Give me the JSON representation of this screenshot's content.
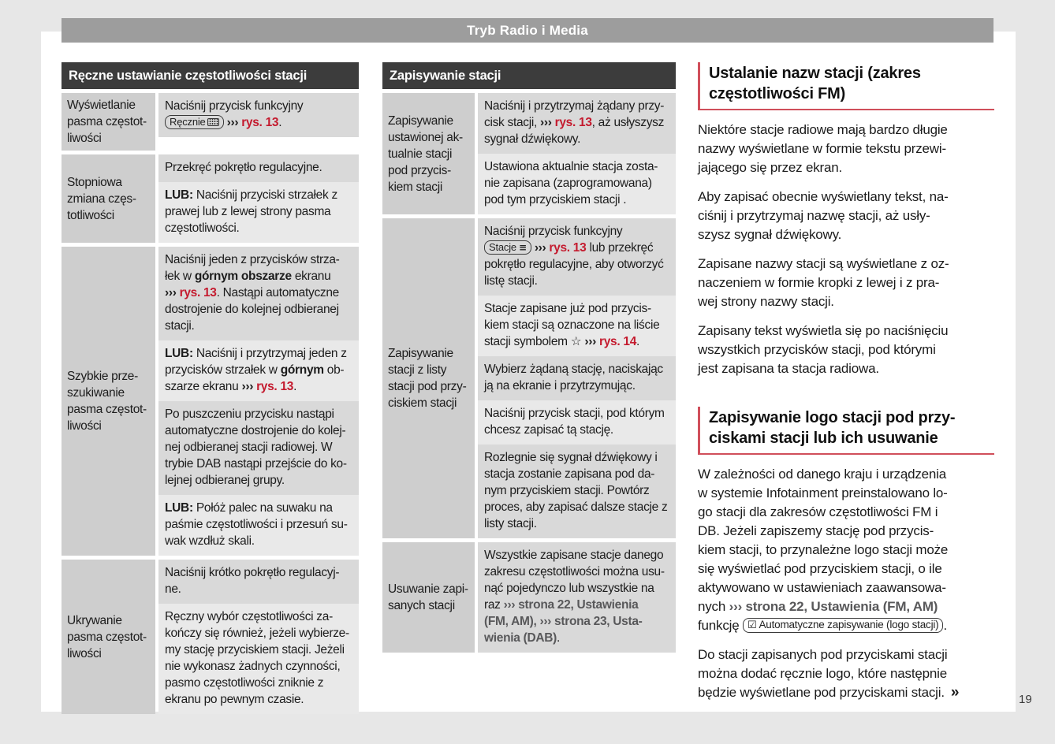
{
  "page": {
    "header_title": "Tryb Radio i Media",
    "page_number": "19"
  },
  "colors": {
    "accent_red_text": "#c41a2e",
    "heading_rule_red": "#d04f5b",
    "header_bar_gray": "#9d9d9d",
    "table_header_gray": "#3c3c3c",
    "cell_dark": "#d9d9d9",
    "cell_light": "#e9e9e9",
    "label_cell_gray": "#cecece",
    "link_gray": "#58585a"
  },
  "tables": [
    {
      "title": "Ręczne ustawianie częstotliwości stacji",
      "rows": [
        {
          "label": "Wyświetlanie\npasma częstot-\nliwości",
          "cells": [
            [
              {
                "t": "Naciśnij przycisk funkcyjny\n",
                "s": "p"
              },
              {
                "t": "Ręcznie",
                "s": "btn",
                "icon": "keyboard"
              },
              {
                "t": " ",
                "s": "p"
              },
              {
                "t": "››› ",
                "s": "b"
              },
              {
                "t": "rys. 13",
                "s": "r"
              },
              {
                "t": ".",
                "s": "p"
              }
            ]
          ]
        },
        {
          "label": "Stopniowa\nzmiana częs-\ntotliwości",
          "cells": [
            [
              {
                "t": "Przekręć pokrętło regulacyjne.",
                "s": "p"
              }
            ],
            [
              {
                "t": "LUB:",
                "s": "b"
              },
              {
                "t": " Naciśnij przyciski strzałek z\nprawej lub z lewej strony pasma\nczęstotliwości.",
                "s": "p"
              }
            ]
          ]
        },
        {
          "label": "Szybkie prze-\nszukiwanie\npasma częstot-\nliwości",
          "cells": [
            [
              {
                "t": "Naciśnij jeden z przycisków strza-\nłek w ",
                "s": "p"
              },
              {
                "t": "górnym obszarze",
                "s": "b"
              },
              {
                "t": " ekranu\n",
                "s": "p"
              },
              {
                "t": "››› ",
                "s": "b"
              },
              {
                "t": "rys. 13",
                "s": "r"
              },
              {
                "t": ". Nastąpi automatyczne\ndostrojenie do kolejnej odbieranej\nstacji.",
                "s": "p"
              }
            ],
            [
              {
                "t": "LUB:",
                "s": "b"
              },
              {
                "t": " Naciśnij i przytrzymaj jeden z\nprzycisków strzałek w ",
                "s": "p"
              },
              {
                "t": "górnym",
                "s": "b"
              },
              {
                "t": " ob-\nszarze ekranu ",
                "s": "p"
              },
              {
                "t": "››› ",
                "s": "b"
              },
              {
                "t": "rys. 13",
                "s": "r"
              },
              {
                "t": ".",
                "s": "p"
              }
            ],
            [
              {
                "t": "Po puszczeniu przycisku nastąpi\nautomatyczne dostrojenie do kolej-\nnej odbieranej stacji radiowej. W\ntrybie DAB nastąpi przejście do ko-\nlejnej odbieranej grupy.",
                "s": "p"
              }
            ],
            [
              {
                "t": "LUB:",
                "s": "b"
              },
              {
                "t": " Połóż palec na suwaku na\npaśmie częstotliwości i przesuń su-\nwak wzdłuż skali.",
                "s": "p"
              }
            ]
          ]
        },
        {
          "label": "Ukrywanie\npasma częstot-\nliwości",
          "cells": [
            [
              {
                "t": "Naciśnij krótko pokrętło regulacyj-\nne.",
                "s": "p"
              }
            ],
            [
              {
                "t": "Ręczny wybór częstotliwości za-\nkończy się również, jeżeli wybierze-\nmy stację przyciskiem stacji. Jeżeli\nnie wykonasz żadnych czynności,\npasmo częstotliwości zniknie z\nekranu po pewnym czasie.",
                "s": "p"
              }
            ]
          ]
        }
      ]
    },
    {
      "title": "Zapisywanie stacji",
      "rows": [
        {
          "label": "Zapisywanie\nustawionej ak-\ntualnie stacji\npod przycis-\nkiem stacji",
          "cells": [
            [
              {
                "t": "Naciśnij i przytrzymaj żądany przy-\ncisk stacji, ",
                "s": "p"
              },
              {
                "t": "››› ",
                "s": "b"
              },
              {
                "t": "rys. 13",
                "s": "r"
              },
              {
                "t": ", aż usłyszysz\nsygnał dźwiękowy.",
                "s": "p"
              }
            ],
            [
              {
                "t": "Ustawiona aktualnie stacja zosta-\nnie zapisana (zaprogramowana)\npod tym przyciskiem stacji .",
                "s": "p"
              }
            ]
          ]
        },
        {
          "label": "Zapisywanie\nstacji z listy\nstacji pod przy-\nciskiem stacji",
          "cells": [
            [
              {
                "t": "Naciśnij przycisk funkcyjny\n",
                "s": "p"
              },
              {
                "t": "Stacje",
                "s": "btn",
                "icon": "list"
              },
              {
                "t": " ",
                "s": "p"
              },
              {
                "t": "››› ",
                "s": "b"
              },
              {
                "t": "rys. 13",
                "s": "r"
              },
              {
                "t": " lub przekręć\npokrętło regulacyjne, aby otworzyć\nlistę stacji.",
                "s": "p"
              }
            ],
            [
              {
                "t": "Stacje zapisane już pod przycis-\nkiem stacji są oznaczone na liście\nstacji symbolem ",
                "s": "p"
              },
              {
                "t": "☆",
                "s": "star"
              },
              {
                "t": " ",
                "s": "p"
              },
              {
                "t": "››› ",
                "s": "b"
              },
              {
                "t": "rys. 14",
                "s": "r"
              },
              {
                "t": ".",
                "s": "p"
              }
            ],
            [
              {
                "t": "Wybierz żądaną stację, naciskając\nją na ekranie i przytrzymując.",
                "s": "p"
              }
            ],
            [
              {
                "t": "Naciśnij przycisk stacji, pod którym\nchcesz zapisać tą stację.",
                "s": "p"
              }
            ],
            [
              {
                "t": "Rozlegnie się sygnał dźwiękowy i\nstacja zostanie zapisana pod da-\nnym przyciskiem stacji. Powtórz\nproces, aby zapisać dalsze stacje z\nlisty stacji.",
                "s": "p"
              }
            ]
          ]
        },
        {
          "label": "Usuwanie zapi-\nsanych stacji",
          "cells": [
            [
              {
                "t": "Wszystkie zapisane stacje danego\nzakresu częstotliwości można usu-\nnąć pojedynczo lub wszystkie na\nraz ",
                "s": "p"
              },
              {
                "t": "››› strona 22, Ustawienia\n(FM, AM), ››› strona 23, Usta-\nwienia (DAB)",
                "s": "g"
              },
              {
                "t": ".",
                "s": "p"
              }
            ]
          ]
        }
      ]
    }
  ],
  "sections": [
    {
      "heading": "Ustalanie nazw stacji (zakres\nczęstotliwości FM)",
      "paragraphs": [
        [
          {
            "t": "Niektóre stacje radiowe mają bardzo długie\nnazwy wyświetlane w formie tekstu przewi-\njającego się przez ekran.",
            "s": "p"
          }
        ],
        [
          {
            "t": "Aby zapisać obecnie wyświetlany tekst, na-\nciśnij i przytrzymaj nazwę stacji, aż usły-\nszysz sygnał dźwiękowy.",
            "s": "p"
          }
        ],
        [
          {
            "t": "Zapisane nazwy stacji są wyświetlane z oz-\nnaczeniem w formie kropki z lewej i z pra-\nwej strony nazwy stacji.",
            "s": "p"
          }
        ],
        [
          {
            "t": "Zapisany tekst wyświetla się po naciśnięciu\nwszystkich przycisków stacji, pod którymi\njest zapisana ta stacja radiowa.",
            "s": "p"
          }
        ]
      ]
    },
    {
      "heading": "Zapisywanie logo stacji pod przy-\nciskami stacji lub ich usuwanie",
      "paragraphs": [
        [
          {
            "t": "W zależności od danego kraju i urządzenia\nw systemie Infotainment preinstalowano lo-\ngo stacji dla zakresów częstotliwości FM i\nDB. Jeżeli zapiszemy stację pod przycis-\nkiem stacji, to przynależne logo stacji może\nsię wyświetlać pod przyciskiem stacji, o ile\naktywowano w ustawieniach zaawansowa-\nnych ",
            "s": "p"
          },
          {
            "t": "››› strona 22, Ustawienia (FM, AM)",
            "s": "g"
          },
          {
            "t": "\nfunkcję ",
            "s": "p"
          },
          {
            "t": "Automatyczne zapisywanie (logo stacji)",
            "s": "btn",
            "icon": "checkbox"
          },
          {
            "t": ".",
            "s": "p"
          }
        ],
        [
          {
            "t": "Do stacji zapisanych pod przyciskami stacji\nmożna dodać ręcznie logo, które następnie\nbędzie wyświetlane pod przyciskami stacji.",
            "s": "p"
          },
          {
            "t": "»",
            "s": "cont"
          }
        ]
      ]
    }
  ],
  "icons": {
    "keyboard": "keyboard-icon",
    "list": "list-icon",
    "checkbox": "checkbox-icon",
    "star": "star-icon"
  }
}
